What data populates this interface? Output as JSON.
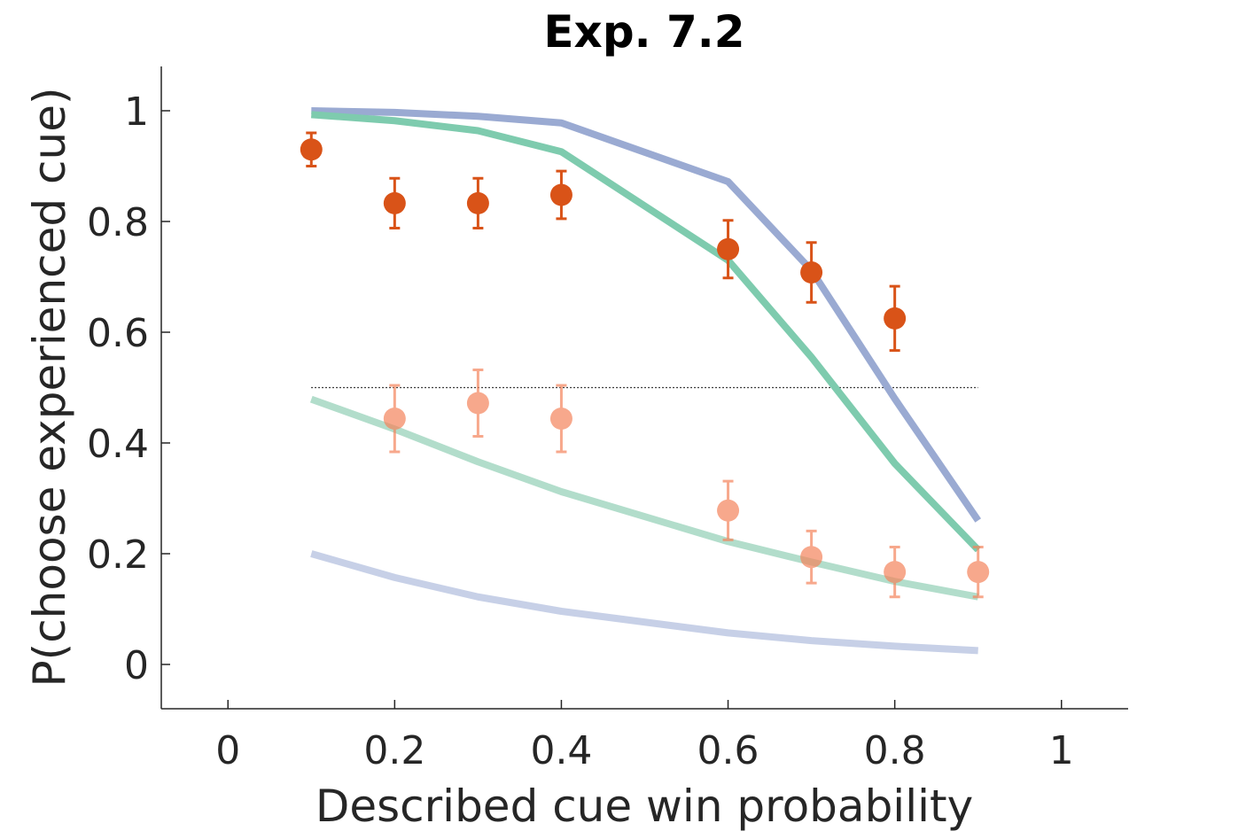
{
  "chart_data": {
    "type": "line",
    "title": "Exp. 7.2",
    "xlabel": "Described cue win probability",
    "ylabel": "P(choose experienced cue)",
    "xlim": [
      -0.08,
      1.08
    ],
    "ylim": [
      -0.08,
      1.08
    ],
    "xticks": [
      0,
      0.2,
      0.4,
      0.6,
      0.8,
      1
    ],
    "xtick_labels": [
      "0",
      "0.2",
      "0.4",
      "0.6",
      "0.8",
      "1"
    ],
    "yticks": [
      0,
      0.2,
      0.4,
      0.6,
      0.8,
      1
    ],
    "ytick_labels": [
      "0",
      "0.2",
      "0.4",
      "0.6",
      "0.8",
      "1"
    ],
    "grid": false,
    "x": [
      0.1,
      0.2,
      0.3,
      0.4,
      0.6,
      0.7,
      0.8,
      0.9
    ],
    "reference_line": {
      "y": 0.5,
      "x_range": [
        0.1,
        0.9
      ],
      "style": "dotted",
      "color": "#000000"
    },
    "line_series": [
      {
        "color": "#9aaad2",
        "opacity": 1.0,
        "values": [
          1.0,
          0.997,
          0.99,
          0.978,
          0.872,
          0.712,
          0.48,
          0.26
        ]
      },
      {
        "color": "#7ecbae",
        "opacity": 1.0,
        "values": [
          0.993,
          0.982,
          0.964,
          0.926,
          0.73,
          0.555,
          0.363,
          0.207
        ]
      },
      {
        "color": "#b2ddcb",
        "opacity": 1.0,
        "values": [
          0.479,
          0.425,
          0.366,
          0.312,
          0.222,
          0.185,
          0.15,
          0.122
        ]
      },
      {
        "color": "#c7d0e7",
        "opacity": 1.0,
        "values": [
          0.2,
          0.157,
          0.122,
          0.096,
          0.057,
          0.043,
          0.033,
          0.025
        ]
      }
    ],
    "point_series": [
      {
        "color": "#d95318",
        "opacity": 1.0,
        "x": [
          0.1,
          0.2,
          0.3,
          0.4,
          0.6,
          0.7,
          0.8
        ],
        "values": [
          0.93,
          0.833,
          0.833,
          0.848,
          0.75,
          0.708,
          0.625
        ],
        "errors": [
          0.03,
          0.045,
          0.045,
          0.043,
          0.052,
          0.054,
          0.058
        ]
      },
      {
        "color": "#f4845c",
        "opacity": 0.7,
        "x": [
          0.2,
          0.3,
          0.4,
          0.6,
          0.7,
          0.8,
          0.9
        ],
        "values": [
          0.444,
          0.472,
          0.444,
          0.278,
          0.194,
          0.167,
          0.167
        ],
        "errors": [
          0.06,
          0.06,
          0.06,
          0.053,
          0.047,
          0.045,
          0.045
        ]
      }
    ]
  }
}
